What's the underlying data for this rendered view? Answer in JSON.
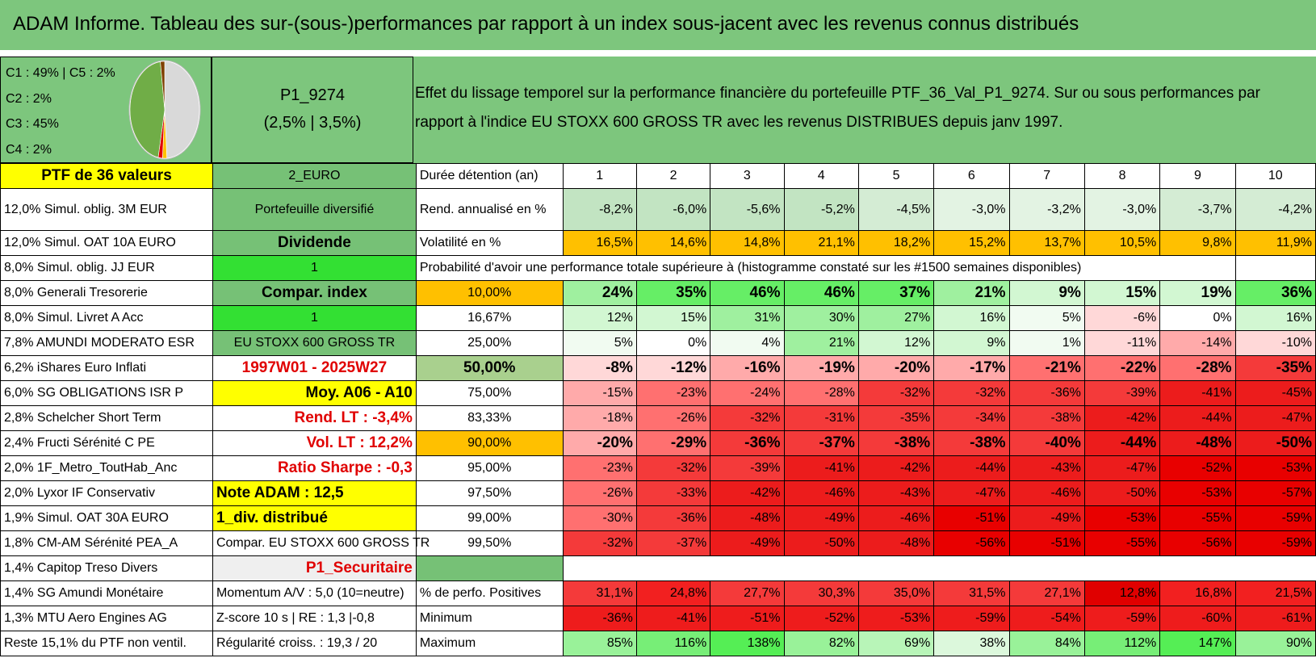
{
  "title": "ADAM Informe. Tableau des sur-(sous-)performances par rapport à un index sous-jacent avec les revenus connus distribués",
  "legend": [
    "C1 : 49% | C5 : 2%",
    "C2 : 2%",
    "C3 : 45%",
    "C4 : 2%"
  ],
  "pie_colors": {
    "C1": "#d9d9d9",
    "C2": "#e00000",
    "C3": "#70ad47",
    "C4": "#7f3f00",
    "C5": "#ffc000"
  },
  "portfolio": {
    "name": "P1_9274",
    "rates": "(2,5% | 3,5%)"
  },
  "description": "Effet du lissage temporel sur la performance financière du portefeuille PTF_36_Val_P1_9274. Sur ou sous performances par rapport à l'indice EU STOXX 600 GROSS TR avec les revenus DISTRIBUES depuis janv 1997.",
  "holdings": [
    "PTF de 36 valeurs",
    "12,0% Simul. oblig. 3M EUR",
    "12,0% Simul. OAT 10A EURO",
    "8,0% Simul. oblig. JJ EUR",
    "8,0% Generali Tresorerie",
    "8,0% Simul. Livret A Acc",
    "7,8% AMUNDI MODERATO ESR",
    "6,2% iShares Euro Inflati",
    "6,0% SG OBLIGATIONS ISR P",
    "2,8% Schelcher Short Term",
    "2,4% Fructi Sérénité C PE",
    "2,0% 1F_Metro_ToutHab_Anc",
    "2,0% Lyxor IF Conservativ",
    "1,9% Simul. OAT 30A EURO",
    "1,8% CM-AM Sérénité PEA_A",
    "1,4% Capitop Treso Divers",
    "1,4% SG Amundi Monétaire",
    "1,3% MTU Aero Engines AG",
    "Reste 15,1% du PTF non ventil."
  ],
  "info": [
    "2_EURO",
    "Portefeuille diversifié",
    "Dividende",
    "1",
    "Compar. index",
    "1",
    "EU STOXX 600 GROSS TR",
    "1997W01 - 2025W27",
    "Moy. A06 - A10",
    "Rend. LT : -3,4%",
    "Vol. LT : 12,2%",
    "Ratio Sharpe : -0,3",
    "Note ADAM : 12,5",
    "1_div. distribué",
    "Compar. EU STOXX 600 GROSS TR",
    "P1_Securitaire",
    "Momentum A/V : 5,0 (10=neutre)",
    "Z-score 10 s | RE : 1,3 |-0,8",
    "Régularité croiss. : 19,3 / 20"
  ],
  "header_label": "Durée détention (an)",
  "years": [
    "1",
    "2",
    "3",
    "4",
    "5",
    "6",
    "7",
    "8",
    "9",
    "10"
  ],
  "rend_label": "Rend. annualisé en %",
  "rend": [
    "-8,2%",
    "-6,0%",
    "-5,6%",
    "-5,2%",
    "-4,5%",
    "-3,0%",
    "-3,2%",
    "-3,0%",
    "-3,7%",
    "-4,2%"
  ],
  "vol_label": "Volatilité en %",
  "vol": [
    "16,5%",
    "14,6%",
    "14,8%",
    "21,1%",
    "18,2%",
    "15,2%",
    "13,7%",
    "10,5%",
    "9,8%",
    "11,9%"
  ],
  "prob_title": "Probabilité d'avoir une performance totale supérieure à (histogramme constaté sur les #1500 semaines disponibles)",
  "prob_rows": [
    {
      "q": "10,00%",
      "v": [
        "24%",
        "35%",
        "46%",
        "46%",
        "37%",
        "21%",
        "9%",
        "15%",
        "19%",
        "36%"
      ]
    },
    {
      "q": "16,67%",
      "v": [
        "12%",
        "15%",
        "31%",
        "30%",
        "27%",
        "16%",
        "5%",
        "-6%",
        "0%",
        "16%"
      ]
    },
    {
      "q": "25,00%",
      "v": [
        "5%",
        "0%",
        "4%",
        "21%",
        "12%",
        "9%",
        "1%",
        "-11%",
        "-14%",
        "-10%"
      ]
    },
    {
      "q": "50,00%",
      "v": [
        "-8%",
        "-12%",
        "-16%",
        "-19%",
        "-20%",
        "-17%",
        "-21%",
        "-22%",
        "-28%",
        "-35%"
      ]
    },
    {
      "q": "75,00%",
      "v": [
        "-15%",
        "-23%",
        "-24%",
        "-28%",
        "-32%",
        "-32%",
        "-36%",
        "-39%",
        "-41%",
        "-45%"
      ]
    },
    {
      "q": "83,33%",
      "v": [
        "-18%",
        "-26%",
        "-32%",
        "-31%",
        "-35%",
        "-34%",
        "-38%",
        "-42%",
        "-44%",
        "-47%"
      ]
    },
    {
      "q": "90,00%",
      "v": [
        "-20%",
        "-29%",
        "-36%",
        "-37%",
        "-38%",
        "-38%",
        "-40%",
        "-44%",
        "-48%",
        "-50%"
      ]
    },
    {
      "q": "95,00%",
      "v": [
        "-23%",
        "-32%",
        "-39%",
        "-41%",
        "-42%",
        "-44%",
        "-43%",
        "-47%",
        "-52%",
        "-53%"
      ]
    },
    {
      "q": "97,50%",
      "v": [
        "-26%",
        "-33%",
        "-42%",
        "-46%",
        "-43%",
        "-47%",
        "-46%",
        "-50%",
        "-53%",
        "-57%"
      ]
    },
    {
      "q": "99,00%",
      "v": [
        "-30%",
        "-36%",
        "-48%",
        "-49%",
        "-46%",
        "-51%",
        "-49%",
        "-53%",
        "-55%",
        "-59%"
      ]
    },
    {
      "q": "99,50%",
      "v": [
        "-32%",
        "-37%",
        "-49%",
        "-50%",
        "-48%",
        "-56%",
        "-51%",
        "-55%",
        "-56%",
        "-59%"
      ]
    }
  ],
  "pos_label": "% de perfo. Positives",
  "pos": [
    "31,1%",
    "24,8%",
    "27,7%",
    "30,3%",
    "35,0%",
    "31,5%",
    "27,1%",
    "12,8%",
    "16,8%",
    "21,5%"
  ],
  "min_label": "Minimum",
  "min": [
    "-36%",
    "-41%",
    "-51%",
    "-52%",
    "-53%",
    "-59%",
    "-54%",
    "-59%",
    "-60%",
    "-61%"
  ],
  "max_label": "Maximum",
  "max": [
    "85%",
    "116%",
    "138%",
    "82%",
    "69%",
    "38%",
    "84%",
    "112%",
    "147%",
    "90%"
  ]
}
